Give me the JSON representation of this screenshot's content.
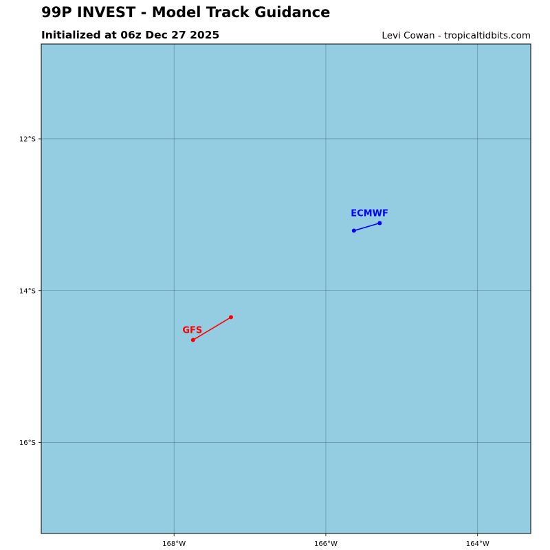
{
  "header": {
    "title": "99P INVEST - Model Track Guidance",
    "subtitle": "Initialized at 06z Dec 27 2025",
    "credit": "Levi Cowan - tropicaltidbits.com"
  },
  "map": {
    "ocean_color": "#94cde2",
    "grid_color": "#4a6f7a",
    "lon_range": [
      -169.75,
      -163.3
    ],
    "lat_range": [
      -17.2,
      -10.75
    ],
    "lon_ticks": [
      {
        "value": -168,
        "label": "168°W"
      },
      {
        "value": -166,
        "label": "166°W"
      },
      {
        "value": -164,
        "label": "164°W"
      }
    ],
    "lat_ticks": [
      {
        "value": -12,
        "label": "12°S"
      },
      {
        "value": -14,
        "label": "14°S"
      },
      {
        "value": -16,
        "label": "16°S"
      }
    ]
  },
  "tracks": [
    {
      "model": "ECMWF",
      "color": "#0000ff",
      "points": [
        [
          -165.63,
          -13.21
        ],
        [
          -165.29,
          -13.11
        ]
      ]
    },
    {
      "model": "GFS",
      "color": "#ff0000",
      "points": [
        [
          -167.75,
          -14.65
        ],
        [
          -167.25,
          -14.35
        ]
      ]
    }
  ]
}
